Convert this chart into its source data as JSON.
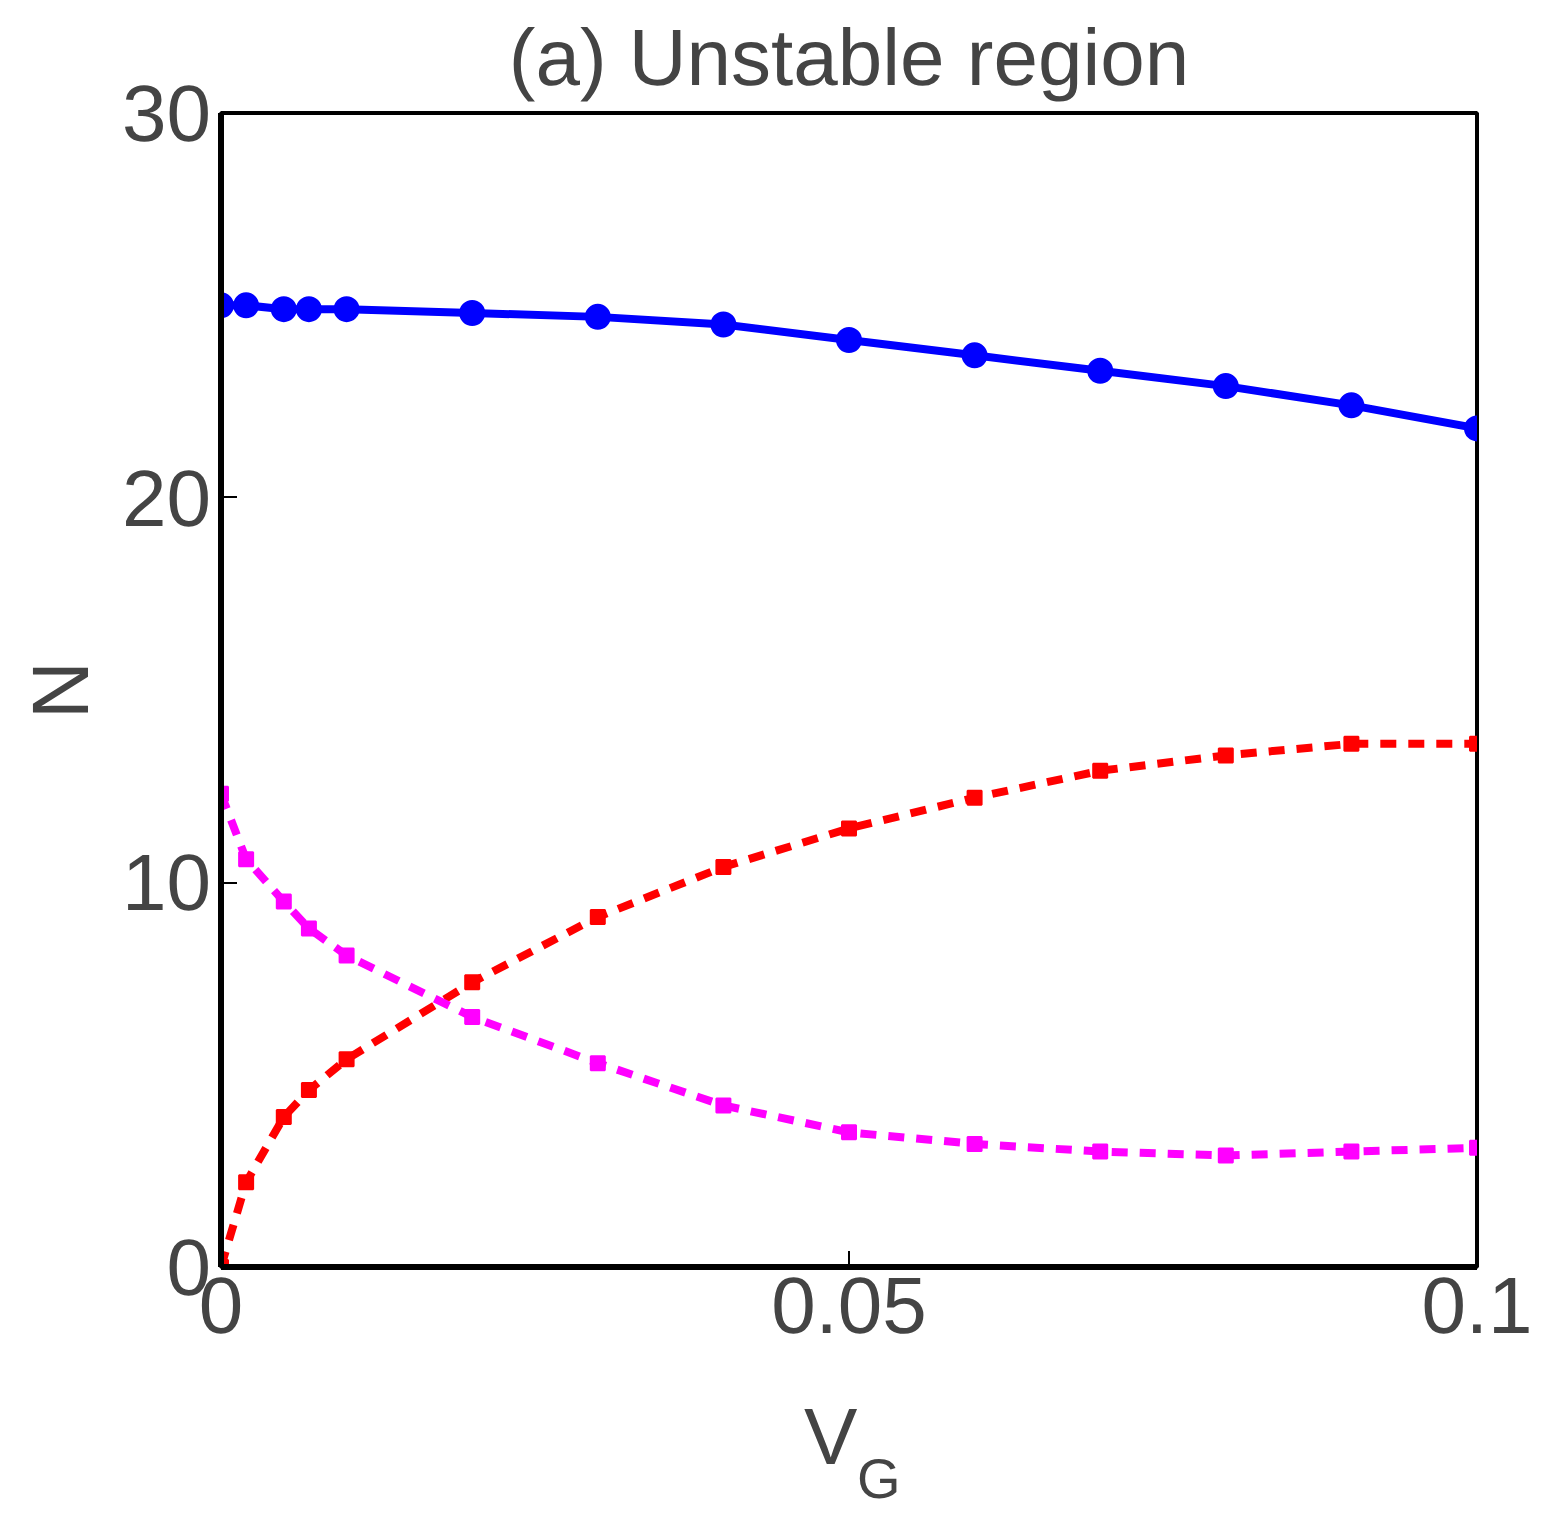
{
  "chart_data": {
    "type": "line",
    "title": "(a) Unstable region",
    "xlabel": "V$_{G}$",
    "ylabel": "N",
    "x": [
      0,
      0.002,
      0.005,
      0.007,
      0.01,
      0.02,
      0.03,
      0.04,
      0.05,
      0.06,
      0.07,
      0.08,
      0.09,
      0.1
    ],
    "series": [
      {
        "color": "#0000ff",
        "marker": "circle",
        "line_style": "solid",
        "values": [
          25.0,
          25.0,
          24.9,
          24.9,
          24.9,
          24.8,
          24.7,
          24.5,
          24.1,
          23.7,
          23.3,
          22.9,
          22.4,
          21.8
        ]
      },
      {
        "color": "#ff0000",
        "marker": "square",
        "line_style": "dashed",
        "values": [
          0.0,
          2.2,
          3.9,
          4.6,
          5.4,
          7.4,
          9.1,
          10.4,
          11.4,
          12.2,
          12.9,
          13.3,
          13.6,
          13.6
        ]
      },
      {
        "color": "#ff00ff",
        "marker": "square",
        "line_style": "dashed",
        "values": [
          12.3,
          10.6,
          9.5,
          8.8,
          8.1,
          6.5,
          5.3,
          4.2,
          3.5,
          3.2,
          3.0,
          2.9,
          3.0,
          3.1
        ]
      }
    ],
    "xlim": [
      0,
      0.1
    ],
    "ylim": [
      0,
      30
    ],
    "xticks": [
      0,
      0.05,
      0.1
    ],
    "yticks": [
      0,
      10,
      20,
      30
    ],
    "grid": false
  }
}
